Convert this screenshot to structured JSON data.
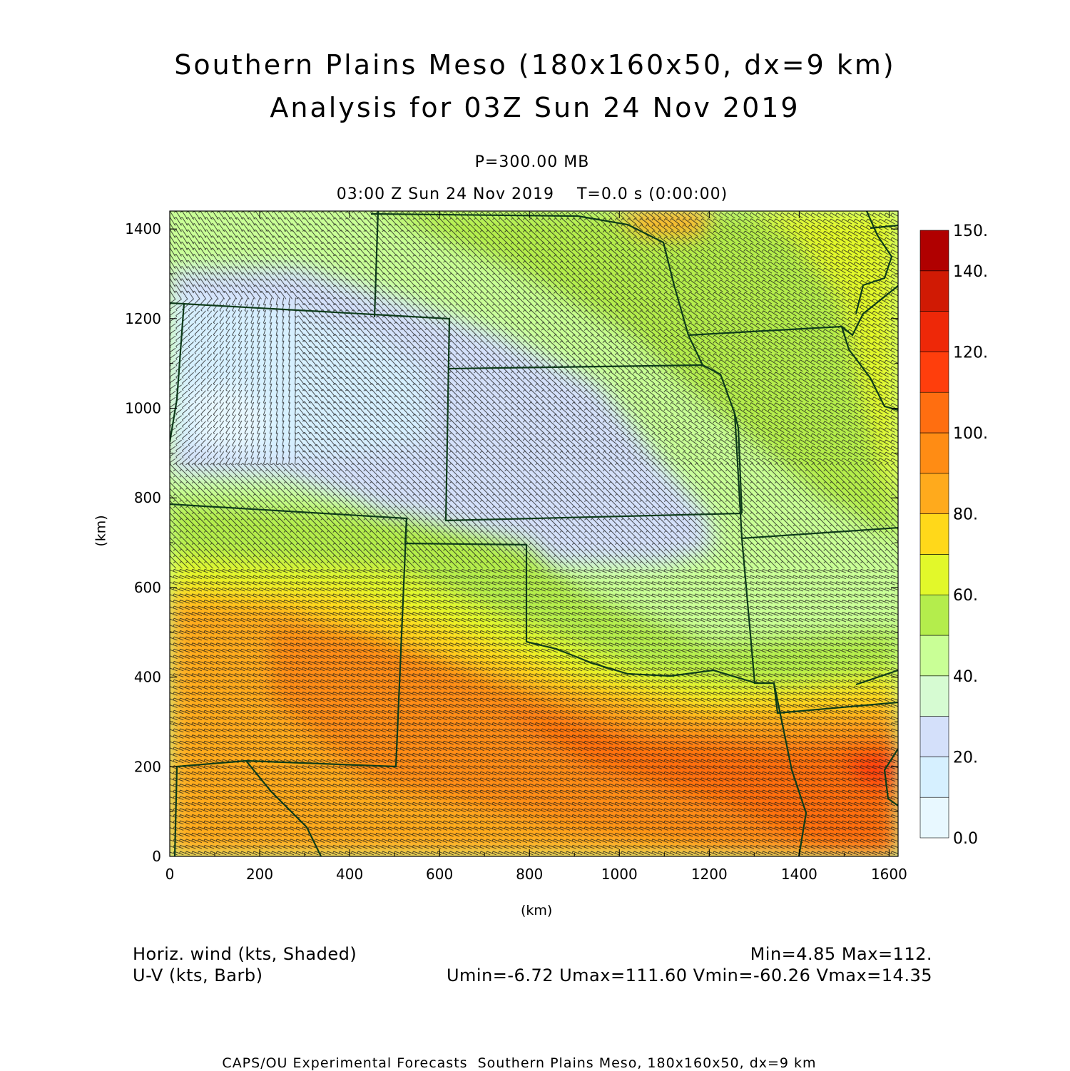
{
  "title": {
    "line1": "Southern Plains Meso (180x160x50, dx=9 km)",
    "line2": "Analysis for 03Z Sun 24 Nov 2019"
  },
  "level": "P=300.00 MB",
  "time_line": "03:00 Z Sun 24 Nov 2019    T=0.0 s (0:00:00)",
  "fields": {
    "shaded": "Horiz. wind (kts, Shaded)",
    "barb": "U-V (kts, Barb)",
    "minmax": "Min=4.85 Max=112.",
    "uv_minmax": "Umin=-6.72 Umax=111.60 Vmin=-60.26 Vmax=14.35"
  },
  "footer": "CAPS/OU Experimental Forecasts  Southern Plains Meso, 180x160x50, dx=9 km",
  "chart_data": {
    "type": "heatmap",
    "xlabel": "(km)",
    "ylabel": "(km)",
    "x_ticks": [
      0,
      200,
      400,
      600,
      800,
      1000,
      1200,
      1400,
      1600
    ],
    "y_ticks": [
      0,
      200,
      400,
      600,
      800,
      1000,
      1200,
      1400
    ],
    "xlim": [
      0,
      1620
    ],
    "ylim": [
      0,
      1440
    ],
    "colorbar": {
      "levels": [
        0,
        10,
        20,
        30,
        40,
        50,
        60,
        70,
        80,
        90,
        100,
        110,
        120,
        130,
        140,
        150
      ],
      "labels": [
        "0.0",
        "20.",
        "40.",
        "60.",
        "80.",
        "100.",
        "120.",
        "140.",
        "150."
      ],
      "label_values": [
        0,
        20,
        40,
        60,
        80,
        100,
        120,
        140,
        150
      ],
      "colors": [
        "#e8f8ff",
        "#d6f0ff",
        "#d4e0fa",
        "#d6fbd2",
        "#c9ff96",
        "#b4ed4c",
        "#e2f82a",
        "#ffd81a",
        "#ffaa1c",
        "#ff8c14",
        "#ff6e10",
        "#ff3e0c",
        "#ee2808",
        "#d01a04",
        "#b00000"
      ]
    }
  }
}
